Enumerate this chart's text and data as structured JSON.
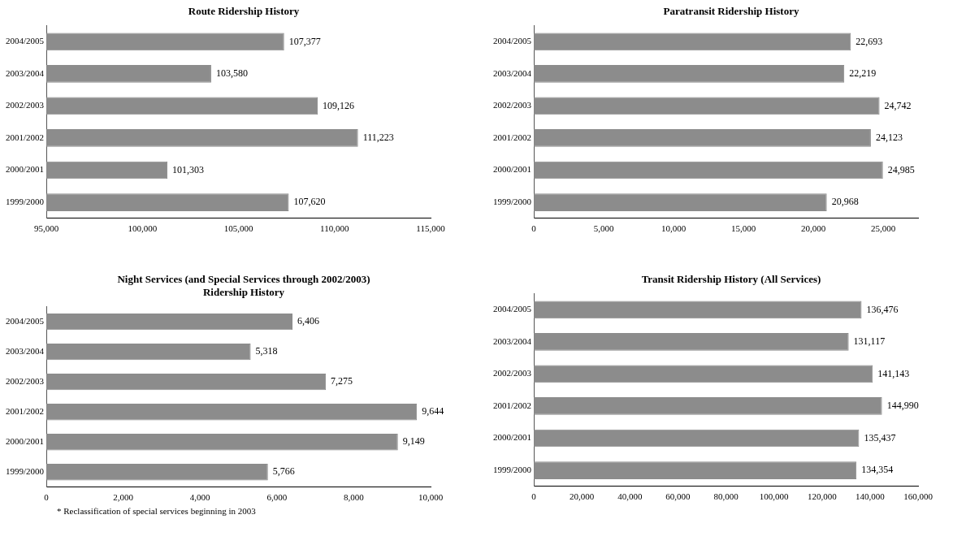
{
  "chart_data": [
    {
      "type": "bar",
      "orientation": "horizontal",
      "title": "Route Ridership History",
      "categories": [
        "2004/2005",
        "2003/2004",
        "2002/2003",
        "2001/2002",
        "2000/2001",
        "1999/2000"
      ],
      "values": [
        107377,
        103580,
        109126,
        111223,
        101303,
        107620
      ],
      "value_labels": [
        "107,377",
        "103,580",
        "109,126",
        "111,223",
        "101,303",
        "107,620"
      ],
      "color": "#8c8c8c",
      "xlim": [
        95000,
        115000
      ],
      "xticks": [
        {
          "value": 95000,
          "label": "95,000"
        },
        {
          "value": 100000,
          "label": "100,000"
        },
        {
          "value": 105000,
          "label": "105,000"
        },
        {
          "value": 110000,
          "label": "110,000"
        },
        {
          "value": 115000,
          "label": "115,000"
        }
      ],
      "grid": false,
      "legend": false
    },
    {
      "type": "bar",
      "orientation": "horizontal",
      "title": "Paratransit Ridership History",
      "categories": [
        "2004/2005",
        "2003/2004",
        "2002/2003",
        "2001/2002",
        "2000/2001",
        "1999/2000"
      ],
      "values": [
        22693,
        22219,
        24742,
        24123,
        24985,
        20968
      ],
      "value_labels": [
        "22,693",
        "22,219",
        "24,742",
        "24,123",
        "24,985",
        "20,968"
      ],
      "color": "#8c8c8c",
      "xlim": [
        0,
        27500
      ],
      "xticks": [
        {
          "value": 0,
          "label": "0"
        },
        {
          "value": 5000,
          "label": "5,000"
        },
        {
          "value": 10000,
          "label": "10,000"
        },
        {
          "value": 15000,
          "label": "15,000"
        },
        {
          "value": 20000,
          "label": "20,000"
        },
        {
          "value": 25000,
          "label": "25,000"
        }
      ],
      "grid": false,
      "legend": false
    },
    {
      "type": "bar",
      "orientation": "horizontal",
      "title": "Night Services (and Special Services through 2002/2003) Ridership History",
      "categories": [
        "2004/2005",
        "2003/2004",
        "2002/2003",
        "2001/2002",
        "2000/2001",
        "1999/2000"
      ],
      "values": [
        6406,
        5318,
        7275,
        9644,
        9149,
        5766
      ],
      "value_labels": [
        "6,406",
        "5,318",
        "7,275",
        "9,644",
        "9,149",
        "5,766"
      ],
      "color": "#8c8c8c",
      "xlim": [
        0,
        10000
      ],
      "xticks": [
        {
          "value": 0,
          "label": "0"
        },
        {
          "value": 2000,
          "label": "2,000"
        },
        {
          "value": 4000,
          "label": "4,000"
        },
        {
          "value": 6000,
          "label": "6,000"
        },
        {
          "value": 8000,
          "label": "8,000"
        },
        {
          "value": 10000,
          "label": "10,000"
        }
      ],
      "grid": false,
      "legend": false,
      "annotations": [
        "* Reclassification of special services beginning in 2003"
      ]
    },
    {
      "type": "bar",
      "orientation": "horizontal",
      "title": "Transit Ridership History (All Services)",
      "categories": [
        "2004/2005",
        "2003/2004",
        "2002/2003",
        "2001/2002",
        "2000/2001",
        "1999/2000"
      ],
      "values": [
        136476,
        131117,
        141143,
        144990,
        135437,
        134354
      ],
      "value_labels": [
        "136,476",
        "131,117",
        "141,143",
        "144,990",
        "135,437",
        "134,354"
      ],
      "color": "#8c8c8c",
      "xlim": [
        0,
        160000
      ],
      "xticks": [
        {
          "value": 0,
          "label": "0"
        },
        {
          "value": 20000,
          "label": "20,000"
        },
        {
          "value": 40000,
          "label": "40,000"
        },
        {
          "value": 60000,
          "label": "60,000"
        },
        {
          "value": 80000,
          "label": "80,000"
        },
        {
          "value": 100000,
          "label": "100,000"
        },
        {
          "value": 120000,
          "label": "120,000"
        },
        {
          "value": 140000,
          "label": "140,000"
        },
        {
          "value": 160000,
          "label": "160,000"
        }
      ],
      "grid": false,
      "legend": false
    }
  ]
}
